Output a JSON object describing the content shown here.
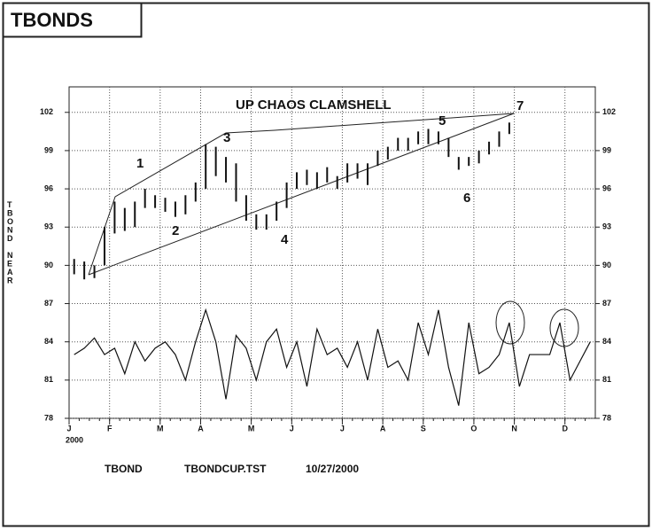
{
  "chart_data": {
    "type": "ohlc_oscillator",
    "title": "TBONDS",
    "ylabel": "TBOND NEAR",
    "year": "2000",
    "footer": [
      "TBOND",
      "TBONDCUP.TST",
      "10/27/2000"
    ],
    "annotations": [
      "UP CHAOS CLAMSHELL",
      "1",
      "2",
      "3",
      "4",
      "5",
      "6",
      "7"
    ],
    "categories": [
      "J",
      null,
      null,
      null,
      "F",
      null,
      null,
      null,
      null,
      "M",
      null,
      null,
      null,
      "A",
      null,
      null,
      null,
      null,
      "M",
      null,
      null,
      null,
      "J",
      null,
      null,
      null,
      null,
      "J",
      null,
      null,
      null,
      "A",
      null,
      null,
      null,
      "S",
      null,
      null,
      null,
      null,
      "O",
      null,
      null,
      null,
      "N",
      null,
      null,
      null,
      null,
      "D",
      null,
      null
    ],
    "ylim": [
      78,
      104
    ],
    "yticks": [
      78,
      81,
      84,
      87,
      90,
      93,
      96,
      99,
      102
    ],
    "grid": true,
    "color": "#111111",
    "high": [
      90.5,
      90.3,
      90,
      93,
      95,
      94.5,
      95,
      96,
      95.5,
      95.3,
      95,
      95.5,
      96.5,
      99.5,
      99.3,
      98.5,
      98,
      95.5,
      94,
      94,
      95,
      96.5,
      97.3,
      97.5,
      97.3,
      97.7,
      97,
      98,
      98,
      98,
      99,
      99.3,
      100,
      100,
      100.5,
      100.7,
      100.5,
      100,
      98.5,
      98.5,
      99,
      99.7,
      100.5,
      101.2,
      null,
      null,
      null,
      null,
      null,
      null,
      null,
      null
    ],
    "low": [
      89.3,
      88.9,
      89,
      90,
      92.5,
      92.7,
      93,
      94.5,
      94.5,
      94.2,
      93.8,
      94,
      95,
      96,
      97,
      96.5,
      95,
      93.5,
      92.8,
      92.8,
      93.5,
      94.5,
      96,
      96.3,
      96,
      96.5,
      96,
      96.5,
      96.8,
      96.3,
      97.8,
      98.3,
      99,
      99,
      99.5,
      99.5,
      99.5,
      98.5,
      97.5,
      97.8,
      98,
      98.7,
      99.3,
      100.3,
      null,
      null,
      null,
      null,
      null,
      null,
      null,
      null
    ],
    "oscillator": [
      83,
      83.5,
      84.3,
      83,
      83.5,
      81.5,
      84,
      82.5,
      83.5,
      84,
      83,
      81,
      84,
      86.5,
      84,
      79.5,
      84.5,
      83.5,
      81,
      84,
      85,
      82,
      84,
      80.5,
      85,
      83,
      83.5,
      82,
      84,
      81,
      85,
      82,
      82.5,
      81,
      85.5,
      83,
      86.5,
      82,
      79,
      85.5,
      81.5,
      82,
      83,
      85.5,
      80.5,
      83,
      83,
      83,
      85.5,
      81,
      82.5,
      84
    ]
  }
}
